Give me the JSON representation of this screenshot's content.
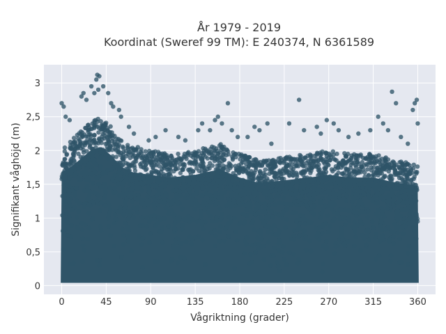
{
  "chart_data": {
    "type": "scatter",
    "title": "År 1979 - 2019",
    "subtitle": "Koordinat (Sweref 99 TM): E 240374, N 6361589",
    "xlabel": "Vågriktning (grader)",
    "ylabel": "Signifikant våghöjd (m)",
    "xlim": [
      -18,
      378
    ],
    "ylim": [
      -0.13,
      3.27
    ],
    "x_ticks": [
      0,
      45,
      90,
      135,
      180,
      225,
      270,
      315,
      360
    ],
    "x_tick_labels": [
      "0",
      "45",
      "90",
      "135",
      "180",
      "225",
      "270",
      "315",
      "360"
    ],
    "y_ticks": [
      0,
      0.5,
      1,
      1.5,
      2,
      2.5,
      3
    ],
    "y_tick_labels": [
      "0",
      "0,5",
      "1",
      "1,5",
      "2",
      "2,5",
      "3"
    ],
    "grid": true,
    "colors": {
      "marker": "#2f5468",
      "plot_bg": "#e5e8f0",
      "grid": "#ffffff"
    },
    "envelope": [
      {
        "x": 0,
        "y": 2.05
      },
      {
        "x": 10,
        "y": 2.15
      },
      {
        "x": 20,
        "y": 2.3
      },
      {
        "x": 30,
        "y": 2.45
      },
      {
        "x": 40,
        "y": 2.5
      },
      {
        "x": 50,
        "y": 2.35
      },
      {
        "x": 60,
        "y": 2.15
      },
      {
        "x": 70,
        "y": 2.05
      },
      {
        "x": 90,
        "y": 2.0
      },
      {
        "x": 110,
        "y": 1.95
      },
      {
        "x": 135,
        "y": 2.0
      },
      {
        "x": 160,
        "y": 2.1
      },
      {
        "x": 180,
        "y": 1.95
      },
      {
        "x": 200,
        "y": 1.85
      },
      {
        "x": 225,
        "y": 1.9
      },
      {
        "x": 250,
        "y": 1.95
      },
      {
        "x": 270,
        "y": 2.0
      },
      {
        "x": 290,
        "y": 1.95
      },
      {
        "x": 315,
        "y": 1.95
      },
      {
        "x": 340,
        "y": 1.85
      },
      {
        "x": 360,
        "y": 1.8
      }
    ],
    "outliers": [
      {
        "x": 0,
        "y": 2.7
      },
      {
        "x": 2,
        "y": 2.65
      },
      {
        "x": 4,
        "y": 2.5
      },
      {
        "x": 8,
        "y": 2.45
      },
      {
        "x": 20,
        "y": 2.8
      },
      {
        "x": 22,
        "y": 2.85
      },
      {
        "x": 25,
        "y": 2.75
      },
      {
        "x": 30,
        "y": 2.95
      },
      {
        "x": 33,
        "y": 2.85
      },
      {
        "x": 35,
        "y": 3.05
      },
      {
        "x": 36,
        "y": 3.12
      },
      {
        "x": 37,
        "y": 2.9
      },
      {
        "x": 38,
        "y": 3.1
      },
      {
        "x": 42,
        "y": 2.95
      },
      {
        "x": 47,
        "y": 2.85
      },
      {
        "x": 50,
        "y": 2.7
      },
      {
        "x": 52,
        "y": 2.65
      },
      {
        "x": 58,
        "y": 2.6
      },
      {
        "x": 60,
        "y": 2.5
      },
      {
        "x": 68,
        "y": 2.35
      },
      {
        "x": 73,
        "y": 2.25
      },
      {
        "x": 77,
        "y": 2.05
      },
      {
        "x": 88,
        "y": 2.15
      },
      {
        "x": 95,
        "y": 2.2
      },
      {
        "x": 105,
        "y": 2.3
      },
      {
        "x": 118,
        "y": 2.2
      },
      {
        "x": 125,
        "y": 2.15
      },
      {
        "x": 138,
        "y": 2.3
      },
      {
        "x": 142,
        "y": 2.4
      },
      {
        "x": 150,
        "y": 2.3
      },
      {
        "x": 155,
        "y": 2.45
      },
      {
        "x": 158,
        "y": 2.5
      },
      {
        "x": 162,
        "y": 2.4
      },
      {
        "x": 168,
        "y": 2.7
      },
      {
        "x": 172,
        "y": 2.3
      },
      {
        "x": 178,
        "y": 2.2
      },
      {
        "x": 188,
        "y": 2.2
      },
      {
        "x": 195,
        "y": 2.35
      },
      {
        "x": 200,
        "y": 2.3
      },
      {
        "x": 208,
        "y": 2.4
      },
      {
        "x": 212,
        "y": 2.1
      },
      {
        "x": 230,
        "y": 2.4
      },
      {
        "x": 240,
        "y": 2.75
      },
      {
        "x": 245,
        "y": 2.3
      },
      {
        "x": 258,
        "y": 2.35
      },
      {
        "x": 262,
        "y": 2.25
      },
      {
        "x": 268,
        "y": 2.45
      },
      {
        "x": 275,
        "y": 2.4
      },
      {
        "x": 280,
        "y": 2.3
      },
      {
        "x": 290,
        "y": 2.2
      },
      {
        "x": 300,
        "y": 2.25
      },
      {
        "x": 312,
        "y": 2.3
      },
      {
        "x": 320,
        "y": 2.5
      },
      {
        "x": 325,
        "y": 2.4
      },
      {
        "x": 330,
        "y": 2.3
      },
      {
        "x": 334,
        "y": 2.87
      },
      {
        "x": 338,
        "y": 2.7
      },
      {
        "x": 343,
        "y": 2.2
      },
      {
        "x": 350,
        "y": 2.1
      },
      {
        "x": 355,
        "y": 2.6
      },
      {
        "x": 357,
        "y": 2.7
      },
      {
        "x": 359,
        "y": 2.75
      },
      {
        "x": 360,
        "y": 2.4
      }
    ]
  }
}
